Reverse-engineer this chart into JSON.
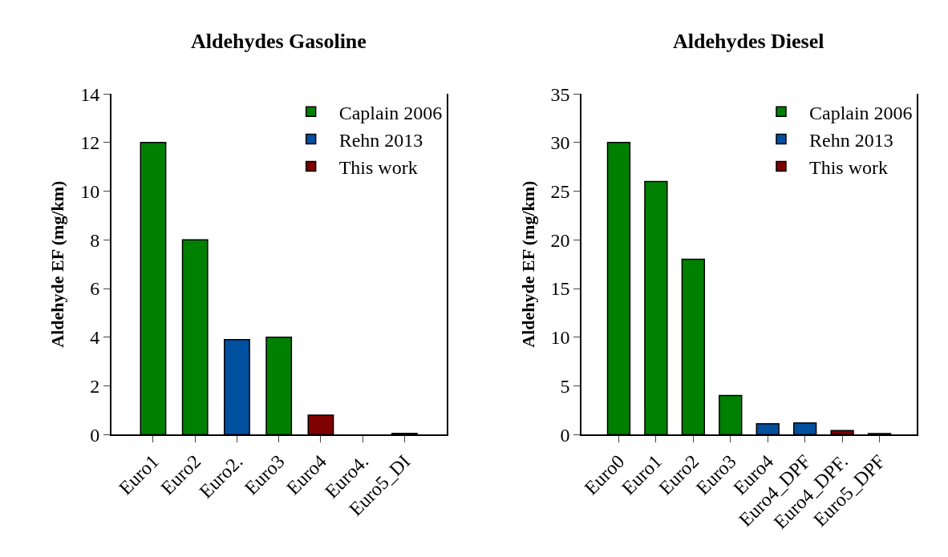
{
  "chart_data": [
    {
      "type": "bar",
      "title": "Aldehydes Gasoline",
      "ylabel": "Aldehyde EF (mg/km)",
      "categories": [
        "Euro1",
        "Euro2",
        "Euro2.",
        "Euro3",
        "Euro4",
        "Euro4.",
        "Euro5_DI"
      ],
      "series": [
        {
          "name": "Caplain 2006",
          "color": "#008000",
          "values": [
            12,
            8,
            null,
            4,
            null,
            null,
            null
          ]
        },
        {
          "name": "Rehn 2013",
          "color": "#0050a0",
          "values": [
            null,
            null,
            3.9,
            null,
            null,
            null,
            null
          ]
        },
        {
          "name": "This work",
          "color": "#800000",
          "values": [
            null,
            null,
            null,
            null,
            0.8,
            null,
            0.05
          ]
        }
      ],
      "ylim": [
        0,
        14
      ],
      "yticks": [
        0,
        2,
        4,
        6,
        8,
        10,
        12,
        14
      ],
      "legend": "top right"
    },
    {
      "type": "bar",
      "title": "Aldehydes Diesel",
      "ylabel": "Aldehyde EF (mg/km)",
      "categories": [
        "Euro0",
        "Euro1",
        "Euro2",
        "Euro3",
        "Euro4",
        "Euro4_DPF",
        "Euro4_DPF.",
        "Euro5_DPF"
      ],
      "series": [
        {
          "name": "Caplain 2006",
          "color": "#008000",
          "values": [
            30,
            26,
            18,
            4,
            null,
            null,
            null,
            null
          ]
        },
        {
          "name": "Rehn 2013",
          "color": "#0050a0",
          "values": [
            null,
            null,
            null,
            null,
            1.1,
            1.2,
            null,
            null
          ]
        },
        {
          "name": "This work",
          "color": "#800000",
          "values": [
            null,
            null,
            null,
            null,
            null,
            null,
            0.4,
            0.1
          ]
        }
      ],
      "ylim": [
        0,
        35
      ],
      "yticks": [
        0,
        5,
        10,
        15,
        20,
        25,
        30,
        35
      ],
      "legend": "top right"
    }
  ]
}
